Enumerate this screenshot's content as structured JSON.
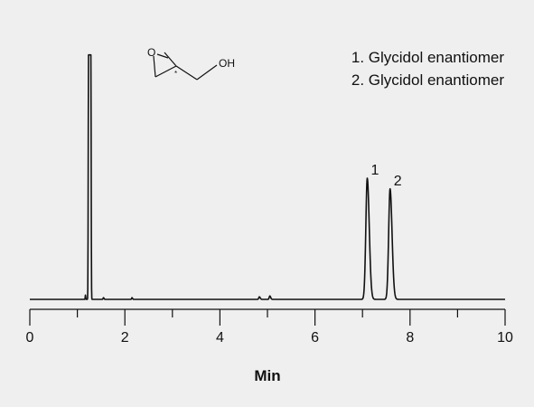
{
  "chart_data": {
    "type": "line",
    "xlabel": "Min",
    "ylabel": "",
    "xlim": [
      0,
      10
    ],
    "x_ticks": [
      "0",
      "2",
      "4",
      "6",
      "8",
      "10"
    ],
    "x_minor_step": 1,
    "grid": false,
    "legend_position": "top-right",
    "legend": [
      "1. Glycidol enantiomer",
      "2. Glycidol enantiomer"
    ],
    "baseline": 0,
    "ylim": [
      0,
      1.0
    ],
    "peaks": [
      {
        "label": "",
        "rt": 1.26,
        "height": 1.15,
        "width": 0.05,
        "flat_top": true
      },
      {
        "label": "",
        "rt": 1.17,
        "height": 0.02,
        "width": 0.01
      },
      {
        "label": "",
        "rt": 1.55,
        "height": 0.008,
        "width": 0.02
      },
      {
        "label": "",
        "rt": 2.15,
        "height": 0.008,
        "width": 0.02
      },
      {
        "label": "",
        "rt": 4.83,
        "height": 0.012,
        "width": 0.03
      },
      {
        "label": "",
        "rt": 5.05,
        "height": 0.016,
        "width": 0.03
      },
      {
        "label": "1",
        "rt": 7.1,
        "height": 0.57,
        "width": 0.07
      },
      {
        "label": "2",
        "rt": 7.58,
        "height": 0.52,
        "width": 0.07
      }
    ],
    "structure": {
      "atom_o": "O",
      "atom_oh": "OH",
      "stereo_mark": "*"
    }
  }
}
